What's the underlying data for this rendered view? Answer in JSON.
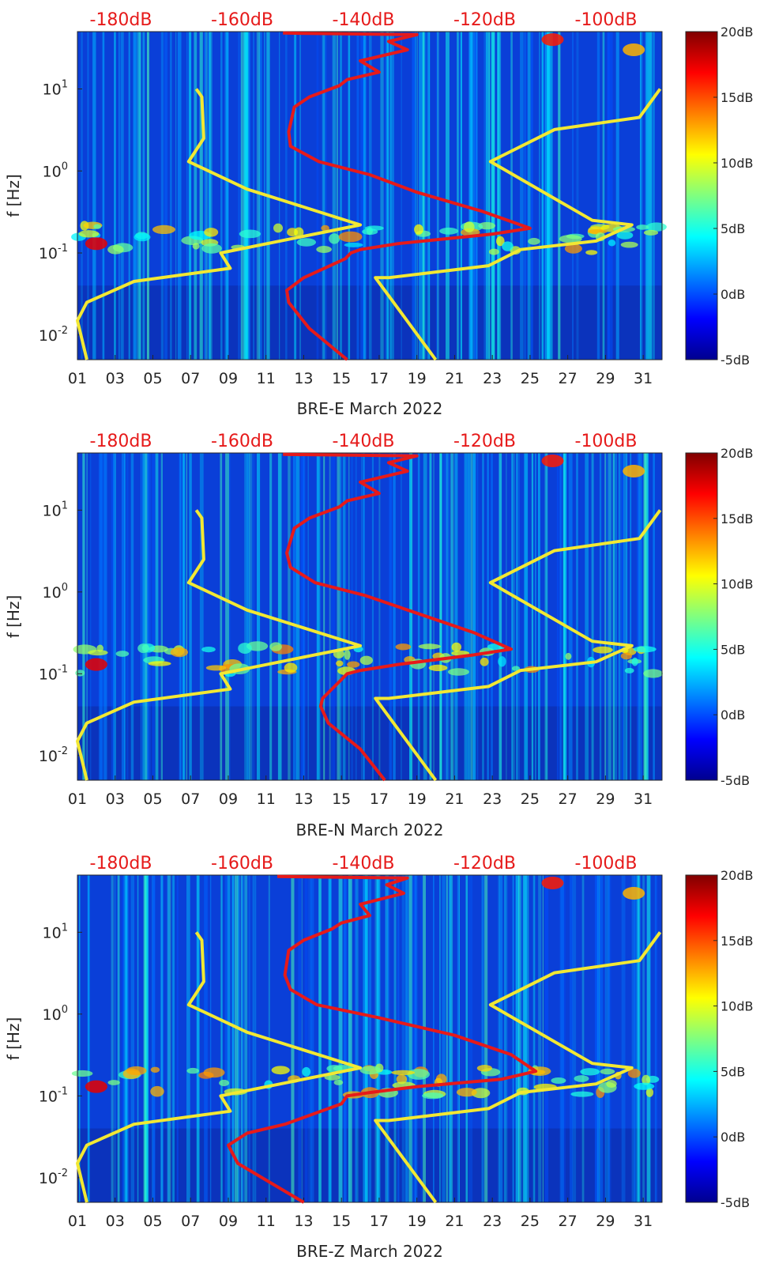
{
  "chart_data": [
    {
      "type": "heatmap",
      "title": "",
      "xlabel": "BRE-E March 2022",
      "ylabel": "f [Hz]",
      "x_ticks": [
        "01",
        "03",
        "05",
        "07",
        "09",
        "11",
        "13",
        "15",
        "17",
        "19",
        "21",
        "23",
        "25",
        "27",
        "29",
        "31"
      ],
      "xlim": [
        1,
        32
      ],
      "y_scale": "log",
      "ylim": [
        0.005,
        50
      ],
      "y_ticks": [
        {
          "value": 0.01,
          "base": "10",
          "exp": "-2"
        },
        {
          "value": 0.1,
          "base": "10",
          "exp": "-1"
        },
        {
          "value": 1,
          "base": "10",
          "exp": "0"
        },
        {
          "value": 10,
          "base": "10",
          "exp": "1"
        }
      ],
      "top_axis_labels": [
        "-180dB",
        "-160dB",
        "-140dB",
        "-120dB",
        "-100dB"
      ],
      "colorbar": {
        "range": [
          -5,
          20
        ],
        "labels": [
          "20dB",
          "15dB",
          "10dB",
          "5dB",
          "0dB",
          "-5dB"
        ]
      },
      "series": [
        {
          "color": "#f2e833",
          "points": [
            [
              7.3,
              10
            ],
            [
              7.6,
              8
            ],
            [
              7.7,
              2.5
            ],
            [
              6.9,
              1.3
            ],
            [
              10,
              0.6
            ],
            [
              16,
              0.22
            ],
            [
              8.6,
              0.1
            ],
            [
              9.1,
              0.065
            ],
            [
              4,
              0.045
            ],
            [
              1.5,
              0.025
            ],
            [
              1,
              0.015
            ],
            [
              1.5,
              0.005
            ]
          ]
        },
        {
          "color": "#f2e833",
          "points": [
            [
              31.9,
              10
            ],
            [
              30.8,
              4.5
            ],
            [
              26.3,
              3.2
            ],
            [
              22.9,
              1.3
            ],
            [
              28.3,
              0.25
            ],
            [
              30.4,
              0.22
            ],
            [
              28.5,
              0.14
            ],
            [
              24.5,
              0.11
            ],
            [
              22.8,
              0.07
            ],
            [
              17.5,
              0.05
            ],
            [
              16.8,
              0.05
            ],
            [
              20,
              0.005
            ]
          ]
        },
        {
          "color": "#e61a1a",
          "points": [
            [
              11.9,
              48
            ],
            [
              19,
              46
            ],
            [
              17.5,
              38
            ],
            [
              18.5,
              30
            ],
            [
              16,
              22
            ],
            [
              17,
              16
            ],
            [
              15.3,
              13
            ],
            [
              14.9,
              11
            ],
            [
              13.3,
              8
            ],
            [
              12.5,
              6
            ],
            [
              12.2,
              3
            ],
            [
              12.3,
              2
            ],
            [
              13.8,
              1.3
            ],
            [
              16.5,
              0.9
            ],
            [
              19,
              0.55
            ],
            [
              22.5,
              0.32
            ],
            [
              25,
              0.2
            ],
            [
              23,
              0.17
            ],
            [
              18,
              0.13
            ],
            [
              16,
              0.11
            ],
            [
              15.5,
              0.1
            ],
            [
              15.2,
              0.085
            ],
            [
              13,
              0.05
            ],
            [
              12.1,
              0.035
            ],
            [
              12.2,
              0.025
            ],
            [
              13.3,
              0.012
            ],
            [
              15.3,
              0.005
            ]
          ]
        }
      ]
    },
    {
      "type": "heatmap",
      "title": "",
      "xlabel": "BRE-N March 2022",
      "ylabel": "f [Hz]",
      "x_ticks": [
        "01",
        "03",
        "05",
        "07",
        "09",
        "11",
        "13",
        "15",
        "17",
        "19",
        "21",
        "23",
        "25",
        "27",
        "29",
        "31"
      ],
      "xlim": [
        1,
        32
      ],
      "y_scale": "log",
      "ylim": [
        0.005,
        50
      ],
      "y_ticks": [
        {
          "value": 0.01,
          "base": "10",
          "exp": "-2"
        },
        {
          "value": 0.1,
          "base": "10",
          "exp": "-1"
        },
        {
          "value": 1,
          "base": "10",
          "exp": "0"
        },
        {
          "value": 10,
          "base": "10",
          "exp": "1"
        }
      ],
      "top_axis_labels": [
        "-180dB",
        "-160dB",
        "-140dB",
        "-120dB",
        "-100dB"
      ],
      "colorbar": {
        "range": [
          -5,
          20
        ],
        "labels": [
          "20dB",
          "15dB",
          "10dB",
          "5dB",
          "0dB",
          "-5dB"
        ]
      },
      "series": [
        {
          "color": "#f2e833",
          "points": [
            [
              7.3,
              10
            ],
            [
              7.6,
              8
            ],
            [
              7.7,
              2.5
            ],
            [
              6.9,
              1.3
            ],
            [
              10,
              0.6
            ],
            [
              16,
              0.22
            ],
            [
              8.6,
              0.1
            ],
            [
              9.1,
              0.065
            ],
            [
              4,
              0.045
            ],
            [
              1.5,
              0.025
            ],
            [
              1,
              0.015
            ],
            [
              1.5,
              0.005
            ]
          ]
        },
        {
          "color": "#f2e833",
          "points": [
            [
              31.9,
              10
            ],
            [
              30.8,
              4.5
            ],
            [
              26.3,
              3.2
            ],
            [
              22.9,
              1.3
            ],
            [
              28.3,
              0.25
            ],
            [
              30.4,
              0.22
            ],
            [
              28.5,
              0.14
            ],
            [
              24.5,
              0.11
            ],
            [
              22.8,
              0.07
            ],
            [
              17.5,
              0.05
            ],
            [
              16.8,
              0.05
            ],
            [
              20,
              0.005
            ]
          ]
        },
        {
          "color": "#e61a1a",
          "points": [
            [
              11.9,
              48
            ],
            [
              19,
              46
            ],
            [
              17.5,
              38
            ],
            [
              18.5,
              30
            ],
            [
              16,
              22
            ],
            [
              17,
              16
            ],
            [
              15.3,
              13
            ],
            [
              14.9,
              11
            ],
            [
              13.3,
              8
            ],
            [
              12.5,
              6
            ],
            [
              12.1,
              3
            ],
            [
              12.3,
              2
            ],
            [
              13.6,
              1.3
            ],
            [
              16.3,
              0.9
            ],
            [
              19,
              0.55
            ],
            [
              22,
              0.32
            ],
            [
              24,
              0.2
            ],
            [
              22,
              0.17
            ],
            [
              18,
              0.13
            ],
            [
              16,
              0.11
            ],
            [
              15.3,
              0.1
            ],
            [
              15,
              0.085
            ],
            [
              14,
              0.05
            ],
            [
              13.9,
              0.04
            ],
            [
              14.3,
              0.025
            ],
            [
              16,
              0.012
            ],
            [
              17.3,
              0.005
            ]
          ]
        }
      ]
    },
    {
      "type": "heatmap",
      "title": "",
      "xlabel": "BRE-Z March 2022",
      "ylabel": "f [Hz]",
      "x_ticks": [
        "01",
        "03",
        "05",
        "07",
        "09",
        "11",
        "13",
        "15",
        "17",
        "19",
        "21",
        "23",
        "25",
        "27",
        "29",
        "31"
      ],
      "xlim": [
        1,
        32
      ],
      "y_scale": "log",
      "ylim": [
        0.005,
        50
      ],
      "y_ticks": [
        {
          "value": 0.01,
          "base": "10",
          "exp": "-2"
        },
        {
          "value": 0.1,
          "base": "10",
          "exp": "-1"
        },
        {
          "value": 1,
          "base": "10",
          "exp": "0"
        },
        {
          "value": 10,
          "base": "10",
          "exp": "1"
        }
      ],
      "top_axis_labels": [
        "-180dB",
        "-160dB",
        "-140dB",
        "-120dB",
        "-100dB"
      ],
      "colorbar": {
        "range": [
          -5,
          20
        ],
        "labels": [
          "20dB",
          "15dB",
          "10dB",
          "5dB",
          "0dB",
          "-5dB"
        ]
      },
      "series": [
        {
          "color": "#f2e833",
          "points": [
            [
              7.3,
              10
            ],
            [
              7.6,
              8
            ],
            [
              7.7,
              2.5
            ],
            [
              6.9,
              1.3
            ],
            [
              10,
              0.6
            ],
            [
              16,
              0.22
            ],
            [
              8.6,
              0.1
            ],
            [
              9.1,
              0.065
            ],
            [
              4,
              0.045
            ],
            [
              1.5,
              0.025
            ],
            [
              1,
              0.015
            ],
            [
              1.5,
              0.005
            ]
          ]
        },
        {
          "color": "#f2e833",
          "points": [
            [
              31.9,
              10
            ],
            [
              30.8,
              4.5
            ],
            [
              26.3,
              3.2
            ],
            [
              22.9,
              1.3
            ],
            [
              28.3,
              0.25
            ],
            [
              30.4,
              0.22
            ],
            [
              28.5,
              0.14
            ],
            [
              24.5,
              0.11
            ],
            [
              22.8,
              0.07
            ],
            [
              17.5,
              0.05
            ],
            [
              16.8,
              0.05
            ],
            [
              20,
              0.005
            ]
          ]
        },
        {
          "color": "#e61a1a",
          "points": [
            [
              11.6,
              48
            ],
            [
              18.5,
              46
            ],
            [
              17.4,
              38
            ],
            [
              18.3,
              30
            ],
            [
              16,
              22
            ],
            [
              16.5,
              16
            ],
            [
              15,
              13
            ],
            [
              14.5,
              11
            ],
            [
              13,
              8
            ],
            [
              12.2,
              6
            ],
            [
              12,
              3
            ],
            [
              12.3,
              2
            ],
            [
              13.7,
              1.3
            ],
            [
              17,
              0.9
            ],
            [
              21,
              0.55
            ],
            [
              24,
              0.32
            ],
            [
              25.3,
              0.2
            ],
            [
              23.5,
              0.16
            ],
            [
              19,
              0.13
            ],
            [
              16.5,
              0.11
            ],
            [
              15.3,
              0.1
            ],
            [
              15,
              0.08
            ],
            [
              12,
              0.045
            ],
            [
              10,
              0.035
            ],
            [
              9,
              0.025
            ],
            [
              9.5,
              0.015
            ],
            [
              13,
              0.005
            ]
          ]
        }
      ]
    }
  ]
}
